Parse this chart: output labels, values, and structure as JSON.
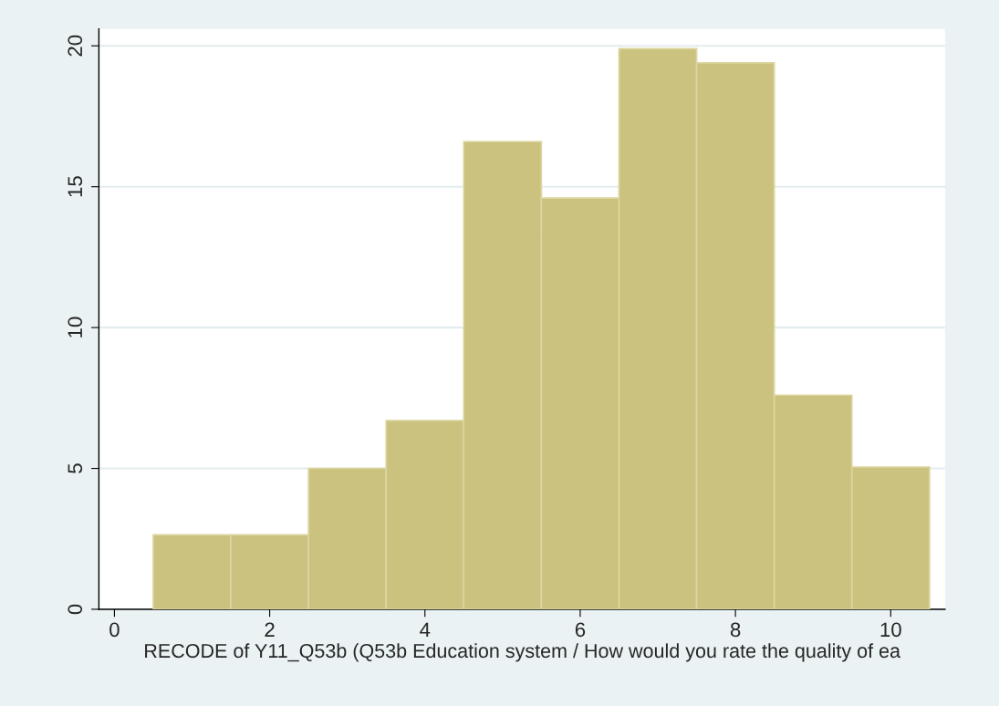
{
  "chart_data": {
    "type": "histogram",
    "xlabel": "RECODE of Y11_Q53b (Q53b Education system / How would you rate the quality of ea",
    "bins": [
      0.5,
      1.5,
      2.5,
      3.5,
      4.5,
      5.5,
      6.5,
      7.5,
      8.5,
      9.5,
      10.5
    ],
    "values": [
      2.64,
      2.64,
      5.0,
      6.7,
      16.6,
      14.6,
      19.9,
      19.4,
      7.6,
      5.05
    ],
    "color": "#cbc27f",
    "xlim": [
      -0.2,
      10.7
    ],
    "xticks": [
      0,
      2,
      4,
      6,
      8,
      10
    ],
    "ylim": [
      0,
      20.6
    ],
    "yticks": [
      0,
      5,
      10,
      15,
      20
    ],
    "grid": "y"
  }
}
